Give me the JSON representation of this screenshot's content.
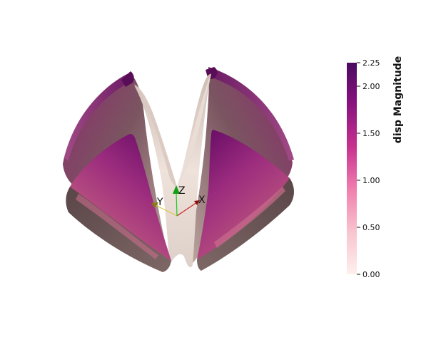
{
  "viewer": {
    "orientation_axes": {
      "x_label": "X",
      "y_label": "Y",
      "z_label": "Z"
    },
    "axis_colors": {
      "x": "#cc2222",
      "y": "#d8c94a",
      "z": "#22cc22"
    }
  },
  "scalar_bar": {
    "title": "disp Magnitude",
    "range": [
      0.0,
      2.25
    ],
    "ticks": [
      "0.00",
      "0.50",
      "1.00",
      "1.50",
      "2.00",
      "2.25"
    ],
    "colormap": [
      "#fdf0ec",
      "#f9c4cf",
      "#f07fae",
      "#c8328f",
      "#8a137f",
      "#4a0a62"
    ]
  }
}
